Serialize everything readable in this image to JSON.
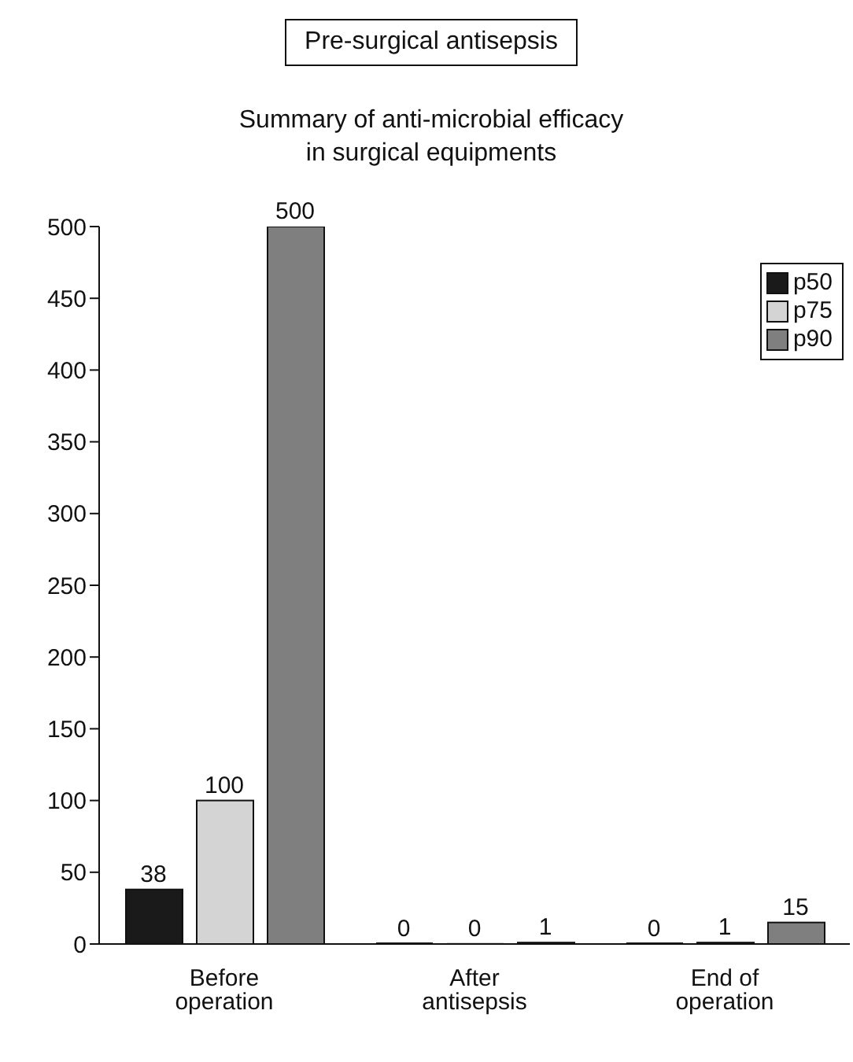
{
  "chart_data": {
    "type": "bar",
    "title": "Pre-surgical antisepsis",
    "subtitle": "Summary of anti-microbial efficacy in surgical equipments",
    "categories": [
      "Before operation",
      "After antisepsis",
      "End of operation"
    ],
    "series": [
      {
        "name": "p50",
        "color": "#1a1a1a",
        "values": [
          38,
          0,
          0
        ]
      },
      {
        "name": "p75",
        "color": "#d4d4d4",
        "values": [
          100,
          0,
          1
        ]
      },
      {
        "name": "p90",
        "color": "#7f7f7f",
        "values": [
          500,
          1,
          15
        ]
      }
    ],
    "ylim": [
      0,
      500
    ],
    "yticks": [
      0,
      50,
      100,
      150,
      200,
      250,
      300,
      350,
      400,
      450,
      500
    ],
    "data_labels": true,
    "legend": "top right",
    "grid": false
  }
}
